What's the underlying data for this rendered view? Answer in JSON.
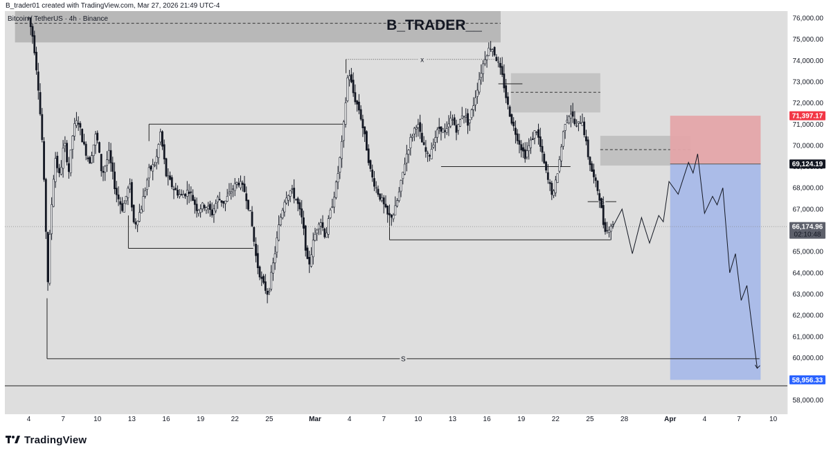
{
  "header": {
    "text": "B_trader01 created with TradingView.com, Mar 27, 2026 21:49 UTC-4"
  },
  "footer": {
    "logo_text": "TradingView",
    "logo_icon": "tradingview-logo-icon"
  },
  "chart_data": {
    "type": "candlestick",
    "symbol": "Bitcoin / TetherUS · 4h · Binance",
    "watermark": "B_TRADER__",
    "ylim": [
      57000,
      76800
    ],
    "y_ticks": [
      58000,
      59000,
      60000,
      61000,
      62000,
      63000,
      64000,
      65000,
      66000,
      67000,
      68000,
      69000,
      70000,
      71000,
      72000,
      73000,
      74000,
      75000,
      76000
    ],
    "x_ticks": [
      {
        "x": 0,
        "label": "4"
      },
      {
        "x": 3,
        "label": "7"
      },
      {
        "x": 6,
        "label": "10"
      },
      {
        "x": 9,
        "label": "13"
      },
      {
        "x": 12,
        "label": "16"
      },
      {
        "x": 15,
        "label": "19"
      },
      {
        "x": 18,
        "label": "22"
      },
      {
        "x": 21,
        "label": "25"
      },
      {
        "x": 25,
        "label": "Mar"
      },
      {
        "x": 28,
        "label": "4"
      },
      {
        "x": 31,
        "label": "7"
      },
      {
        "x": 34,
        "label": "10"
      },
      {
        "x": 37,
        "label": "13"
      },
      {
        "x": 40,
        "label": "16"
      },
      {
        "x": 43,
        "label": "19"
      },
      {
        "x": 46,
        "label": "22"
      },
      {
        "x": 49,
        "label": "25"
      },
      {
        "x": 52,
        "label": "28"
      },
      {
        "x": 56,
        "label": "Apr"
      },
      {
        "x": 59,
        "label": "4"
      },
      {
        "x": 62,
        "label": "7"
      },
      {
        "x": 65,
        "label": "10"
      }
    ],
    "price_path": [
      [
        0.0,
        76000
      ],
      [
        0.4,
        75000
      ],
      [
        0.8,
        73000
      ],
      [
        1.2,
        70000
      ],
      [
        1.5,
        66000
      ],
      [
        1.6,
        62800
      ],
      [
        1.9,
        66500
      ],
      [
        2.3,
        69500
      ],
      [
        2.7,
        68500
      ],
      [
        3.1,
        70200
      ],
      [
        3.5,
        68800
      ],
      [
        3.9,
        70800
      ],
      [
        4.3,
        71200
      ],
      [
        4.8,
        70000
      ],
      [
        5.3,
        69200
      ],
      [
        5.9,
        70600
      ],
      [
        6.4,
        68600
      ],
      [
        7.0,
        69600
      ],
      [
        7.6,
        67800
      ],
      [
        8.2,
        67000
      ],
      [
        8.8,
        68200
      ],
      [
        9.2,
        66200
      ],
      [
        9.8,
        67000
      ],
      [
        10.5,
        68800
      ],
      [
        11.1,
        69200
      ],
      [
        11.5,
        70600
      ],
      [
        12.0,
        68600
      ],
      [
        12.6,
        68000
      ],
      [
        13.3,
        67600
      ],
      [
        14.0,
        67900
      ],
      [
        14.7,
        67000
      ],
      [
        15.4,
        67200
      ],
      [
        16.0,
        66800
      ],
      [
        16.5,
        67500
      ],
      [
        17.1,
        67300
      ],
      [
        17.7,
        67900
      ],
      [
        18.3,
        68300
      ],
      [
        18.9,
        67800
      ],
      [
        19.4,
        66600
      ],
      [
        19.9,
        64500
      ],
      [
        20.4,
        63500
      ],
      [
        20.9,
        63000
      ],
      [
        21.4,
        64600
      ],
      [
        21.9,
        66400
      ],
      [
        22.4,
        67600
      ],
      [
        22.9,
        67900
      ],
      [
        23.4,
        67400
      ],
      [
        23.9,
        66400
      ],
      [
        24.4,
        64200
      ],
      [
        24.9,
        65600
      ],
      [
        25.4,
        66600
      ],
      [
        25.9,
        65700
      ],
      [
        26.4,
        67000
      ],
      [
        26.9,
        68300
      ],
      [
        27.4,
        70300
      ],
      [
        27.9,
        73600
      ],
      [
        28.4,
        72300
      ],
      [
        28.9,
        71600
      ],
      [
        29.4,
        70200
      ],
      [
        29.9,
        68600
      ],
      [
        30.4,
        67900
      ],
      [
        30.9,
        67300
      ],
      [
        31.4,
        66600
      ],
      [
        31.9,
        66800
      ],
      [
        32.4,
        67900
      ],
      [
        32.9,
        69400
      ],
      [
        33.4,
        70400
      ],
      [
        33.9,
        71100
      ],
      [
        34.4,
        70000
      ],
      [
        34.9,
        69400
      ],
      [
        35.4,
        70300
      ],
      [
        35.9,
        70900
      ],
      [
        36.4,
        70500
      ],
      [
        36.9,
        71300
      ],
      [
        37.4,
        70700
      ],
      [
        37.9,
        71600
      ],
      [
        38.4,
        71000
      ],
      [
        38.9,
        72100
      ],
      [
        39.4,
        73300
      ],
      [
        39.9,
        74300
      ],
      [
        40.4,
        74700
      ],
      [
        40.9,
        74000
      ],
      [
        41.4,
        73100
      ],
      [
        41.8,
        71900
      ],
      [
        42.3,
        70900
      ],
      [
        42.8,
        70200
      ],
      [
        43.3,
        69500
      ],
      [
        43.8,
        70100
      ],
      [
        44.3,
        70800
      ],
      [
        44.8,
        69600
      ],
      [
        45.3,
        68400
      ],
      [
        45.8,
        67600
      ],
      [
        46.3,
        69200
      ],
      [
        46.8,
        71100
      ],
      [
        47.3,
        71600
      ],
      [
        47.8,
        70800
      ],
      [
        48.3,
        71300
      ],
      [
        48.8,
        69600
      ],
      [
        49.3,
        68500
      ],
      [
        49.8,
        67700
      ],
      [
        50.2,
        66200
      ],
      [
        50.5,
        66000
      ],
      [
        50.8,
        66300
      ],
      [
        51.0,
        66174.96
      ]
    ],
    "projection_path": [
      [
        51.0,
        66174.96
      ],
      [
        51.8,
        67000
      ],
      [
        52.7,
        64900
      ],
      [
        53.5,
        66600
      ],
      [
        54.2,
        65400
      ],
      [
        55.0,
        66700
      ],
      [
        55.4,
        66400
      ],
      [
        55.9,
        68300
      ],
      [
        56.7,
        67700
      ],
      [
        57.6,
        69200
      ],
      [
        58.0,
        68700
      ],
      [
        58.4,
        69600
      ],
      [
        59.0,
        66800
      ],
      [
        59.7,
        67600
      ],
      [
        60.1,
        67200
      ],
      [
        60.6,
        68000
      ],
      [
        61.2,
        64000
      ],
      [
        61.7,
        64900
      ],
      [
        62.2,
        62700
      ],
      [
        62.7,
        63400
      ],
      [
        63.6,
        59500
      ]
    ],
    "zones": [
      {
        "name": "supply-zone-top",
        "x1": -1.2,
        "x2": 41.2,
        "y1": 74850,
        "y2": 76600,
        "mid": 75750,
        "color": "#b2b2b2"
      },
      {
        "name": "supply-zone-middle",
        "x1": 42.1,
        "x2": 49.9,
        "y1": 71550,
        "y2": 73400,
        "mid": 72500,
        "color": "#c0c0c0"
      },
      {
        "name": "supply-zone-lower",
        "x1": 49.9,
        "x2": 57.8,
        "y1": 69050,
        "y2": 70450,
        "mid": 69800,
        "color": "#bcbcbc"
      }
    ],
    "levels": [
      {
        "name": "range-high-line",
        "x1": 10.5,
        "x2": 27.7,
        "y": 71000
      },
      {
        "name": "range-low-line",
        "x1": 8.7,
        "x2": 19.6,
        "y": 65150
      },
      {
        "name": "swing-high-x-line",
        "x1": 27.7,
        "x2": 41.0,
        "y": 74050,
        "label": "x"
      },
      {
        "name": "high-bracket-line",
        "x1": 41.0,
        "x2": 43.1,
        "y": 72900
      },
      {
        "name": "mid-range-low-line",
        "x1": 36.0,
        "x2": 47.3,
        "y": 69000
      },
      {
        "name": "sweep-low-line",
        "x1": 31.5,
        "x2": 50.8,
        "y": 65550
      },
      {
        "name": "recent-s-line",
        "x1": 48.8,
        "x2": 51.3,
        "y": 67350,
        "label": "S"
      },
      {
        "name": "major-s-line",
        "x1": 1.6,
        "x2": 63.8,
        "y": 59950,
        "label": "S"
      }
    ],
    "trade": {
      "entry": 69124.19,
      "stop": 71397.17,
      "target": 58956.33,
      "x1": 56.0,
      "x2": 63.9,
      "entry_label": "69,124.19",
      "stop_label": "71,397.17",
      "target_label": "58,956.33"
    },
    "current_price": {
      "value": 66174.96,
      "label": "66,174.96",
      "countdown": "02:10:48"
    },
    "colors": {
      "background": "#dedede",
      "candle": "#131722",
      "stop_zone": "#e4a5a9",
      "target_zone": "#a8b9e8",
      "target_badge": "#2962ff",
      "stop_badge": "#f23645",
      "entry_badge": "#131722",
      "price_badge": "#5d606b"
    }
  }
}
